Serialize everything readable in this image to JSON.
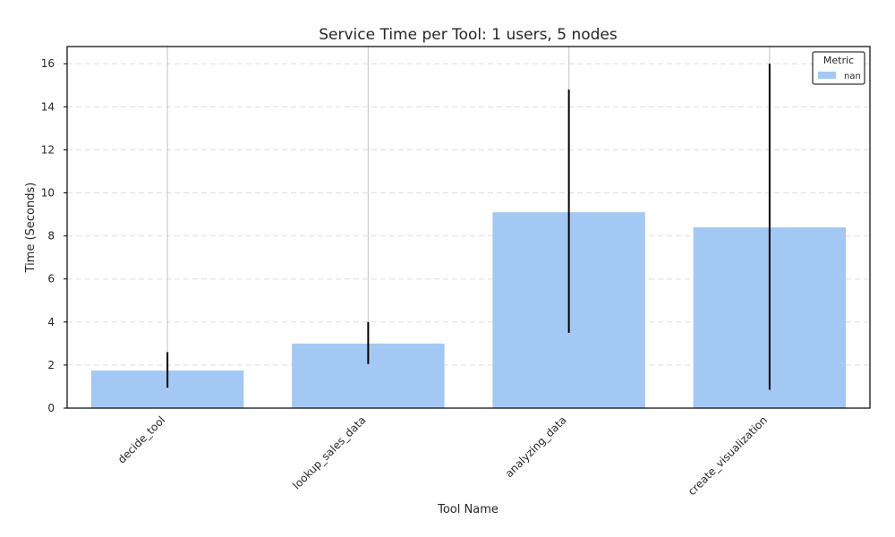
{
  "chart_data": {
    "type": "bar",
    "title": "Service Time per Tool: 1 users, 5 nodes",
    "xlabel": "Tool Name",
    "ylabel": "Time (Seconds)",
    "categories": [
      "decide_tool",
      "lookup_sales_data",
      "analyzing_data",
      "create_visualization"
    ],
    "series": [
      {
        "name": "nan",
        "values": [
          1.75,
          3.0,
          9.1,
          8.4
        ],
        "error_low": [
          0.95,
          2.05,
          3.5,
          0.85
        ],
        "error_high": [
          2.6,
          4.0,
          14.8,
          16.0
        ]
      }
    ],
    "ylim": [
      0,
      16.8
    ],
    "yticks": [
      0,
      2,
      4,
      6,
      8,
      10,
      12,
      14,
      16
    ],
    "grid": "y-dashed",
    "legend": {
      "title": "Metric",
      "placement": "top-right"
    },
    "colors": {
      "bar": "#a3c8f4",
      "error": "#000000",
      "vertical_grid": "#cccccc",
      "horizontal_grid": "#dddddd",
      "axis": "#000000"
    }
  }
}
